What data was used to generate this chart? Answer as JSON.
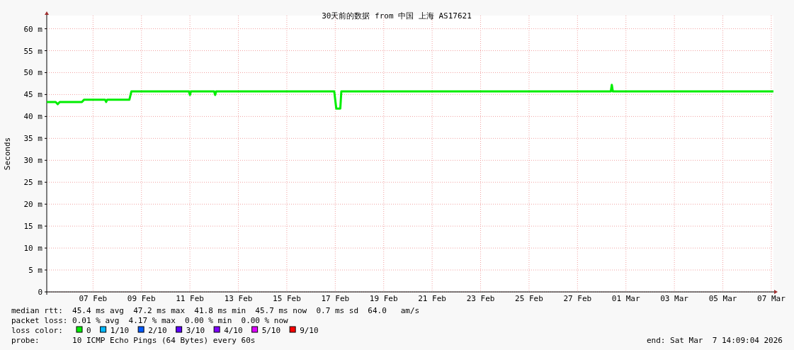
{
  "chart_data": {
    "type": "line",
    "title": "30天前的数据 from 中国 上海 AS17621",
    "ylabel": "Seconds",
    "x": [
      "2026-02-05T14:09",
      "2026-02-05T23:00",
      "2026-02-06T01:00",
      "2026-02-06T03:00",
      "2026-02-07T01:00",
      "2026-02-07T03:00",
      "2026-02-08T00:00",
      "2026-02-08T01:00",
      "2026-02-08T02:00",
      "2026-02-09T00:00",
      "2026-02-09T02:00",
      "2026-02-11T11:00",
      "2026-02-11T12:00",
      "2026-02-11T13:00",
      "2026-02-12T12:00",
      "2026-02-12T13:00",
      "2026-02-12T14:00",
      "2026-02-17T11:00",
      "2026-02-17T13:00",
      "2026-02-17T17:00",
      "2026-02-17T18:00",
      "2026-02-28T21:00",
      "2026-02-28T22:00",
      "2026-02-28T23:00",
      "2026-03-07T14:09"
    ],
    "series": [
      {
        "name": "0",
        "color": "#00ee00",
        "values": [
          43.3,
          43.3,
          42.8,
          43.3,
          43.3,
          43.8,
          43.8,
          43.3,
          43.8,
          43.8,
          45.7,
          45.7,
          44.9,
          45.7,
          45.7,
          44.9,
          45.7,
          45.7,
          41.8,
          41.8,
          45.7,
          45.7,
          47.2,
          45.7,
          45.7
        ]
      },
      {
        "name": "1/10",
        "color": "#00b8ff",
        "values": [
          null,
          null,
          null,
          null,
          null,
          null,
          null,
          null,
          null,
          null,
          null,
          null,
          null,
          null,
          null,
          null,
          null,
          null,
          null,
          null,
          null,
          null,
          null,
          null,
          null
        ]
      },
      {
        "name": "2/10",
        "color": "#0059ff",
        "values": [
          null,
          null,
          null,
          null,
          null,
          null,
          null,
          null,
          null,
          null,
          null,
          null,
          null,
          null,
          null,
          null,
          null,
          null,
          null,
          null,
          null,
          null,
          null,
          null,
          null
        ]
      },
      {
        "name": "3/10",
        "color": "#5e00ff",
        "values": [
          null,
          null,
          null,
          null,
          null,
          null,
          null,
          null,
          null,
          null,
          null,
          null,
          null,
          null,
          null,
          null,
          null,
          null,
          null,
          null,
          null,
          null,
          null,
          null,
          null
        ]
      },
      {
        "name": "4/10",
        "color": "#7e00ff",
        "values": [
          null,
          null,
          null,
          null,
          null,
          null,
          null,
          null,
          null,
          null,
          null,
          null,
          null,
          null,
          null,
          null,
          null,
          null,
          null,
          null,
          null,
          null,
          null,
          null,
          null
        ]
      },
      {
        "name": "5/10",
        "color": "#dd00ff",
        "values": [
          null,
          null,
          null,
          null,
          null,
          null,
          null,
          null,
          null,
          null,
          null,
          null,
          null,
          null,
          null,
          null,
          null,
          null,
          null,
          null,
          null,
          null,
          null,
          null,
          null
        ]
      },
      {
        "name": "9/10",
        "color": "#ff0000",
        "values": [
          null,
          null,
          null,
          null,
          null,
          null,
          null,
          null,
          null,
          null,
          null,
          null,
          null,
          null,
          null,
          null,
          null,
          null,
          null,
          null,
          null,
          null,
          null,
          null,
          null
        ]
      }
    ],
    "legend_title": "loss color:",
    "legend": "bottom",
    "grid": true,
    "xlim": [
      "2026-02-05T14:09",
      "2026-03-07T14:09"
    ],
    "xticks": [
      {
        "value": "2026-02-07T12:00",
        "label": "07 Feb"
      },
      {
        "value": "2026-02-09T12:00",
        "label": "09 Feb"
      },
      {
        "value": "2026-02-11T12:00",
        "label": "11 Feb"
      },
      {
        "value": "2026-02-13T12:00",
        "label": "13 Feb"
      },
      {
        "value": "2026-02-15T12:00",
        "label": "15 Feb"
      },
      {
        "value": "2026-02-17T12:00",
        "label": "17 Feb"
      },
      {
        "value": "2026-02-19T12:00",
        "label": "19 Feb"
      },
      {
        "value": "2026-02-21T12:00",
        "label": "21 Feb"
      },
      {
        "value": "2026-02-23T12:00",
        "label": "23 Feb"
      },
      {
        "value": "2026-02-25T12:00",
        "label": "25 Feb"
      },
      {
        "value": "2026-02-27T12:00",
        "label": "27 Feb"
      },
      {
        "value": "2026-03-01T12:00",
        "label": "01 Mar"
      },
      {
        "value": "2026-03-03T12:00",
        "label": "03 Mar"
      },
      {
        "value": "2026-03-05T12:00",
        "label": "05 Mar"
      },
      {
        "value": "2026-03-07T12:00",
        "label": "07 Mar"
      }
    ],
    "ylim": [
      0,
      63
    ],
    "yticks": [
      0,
      {
        "value": 5,
        "label": "5 m"
      },
      {
        "value": 10,
        "label": "10 m"
      },
      {
        "value": 15,
        "label": "15 m"
      },
      {
        "value": 20,
        "label": "20 m"
      },
      {
        "value": 25,
        "label": "25 m"
      },
      {
        "value": 30,
        "label": "30 m"
      },
      {
        "value": 35,
        "label": "35 m"
      },
      {
        "value": 40,
        "label": "40 m"
      },
      {
        "value": 45,
        "label": "45 m"
      },
      {
        "value": 50,
        "label": "50 m"
      },
      {
        "value": 55,
        "label": "55 m"
      },
      {
        "value": 60,
        "label": "60 m"
      }
    ],
    "annotations": [
      "median rtt:  45.4 ms avg  47.2 ms max  41.8 ms min  45.7 ms now  0.7 ms sd  64.0   am/s",
      "packet loss: 0.01 % avg  4.17 % max  0.00 % min  0.00 % now",
      "probe:       10 ICMP Echo Pings (64 Bytes) every 60s",
      "end: Sat Mar  7 14:09:04 2026"
    ]
  }
}
